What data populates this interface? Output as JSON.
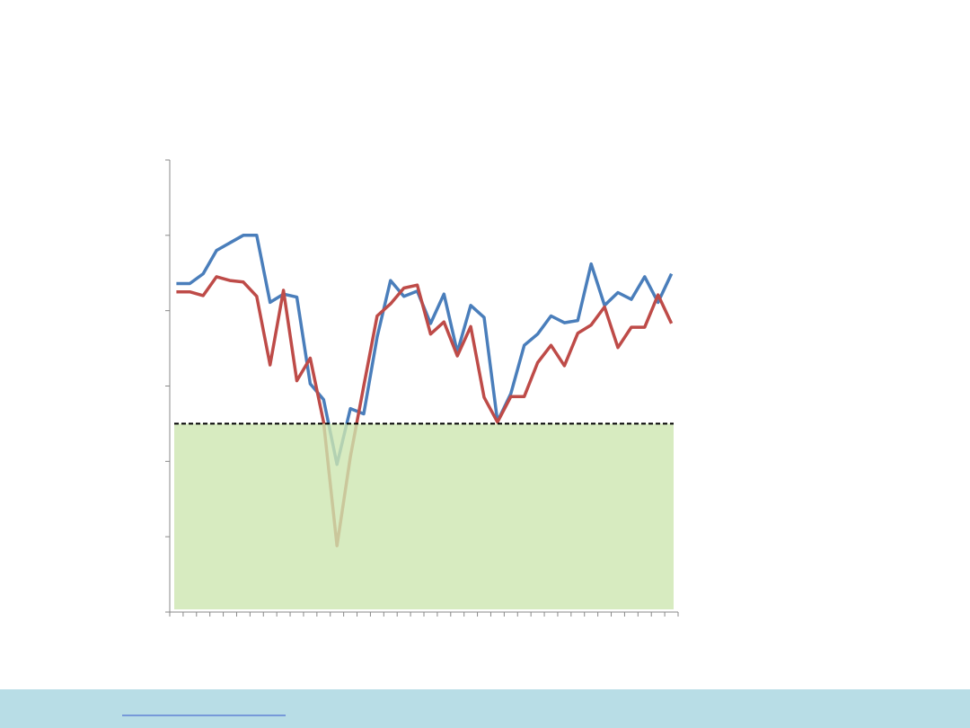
{
  "chart_data": {
    "type": "line",
    "categories": [
      null,
      null,
      null,
      null,
      null,
      null,
      null,
      null,
      null,
      null,
      null,
      null,
      null,
      null,
      null,
      null,
      null,
      null,
      null,
      null,
      null,
      null,
      null,
      null,
      null,
      null,
      null,
      null,
      null,
      null,
      null,
      null,
      null,
      null,
      null,
      null,
      null,
      null
    ],
    "series": [
      {
        "color": "#4a7ebb",
        "values": [
          43.6,
          43.6,
          44.9,
          48.0,
          49.0,
          50.0,
          50.0,
          41.1,
          42.2,
          41.8,
          30.3,
          28.2,
          19.6,
          27.0,
          26.3,
          36.5,
          44.0,
          41.9,
          42.6,
          38.3,
          42.2,
          34.5,
          40.7,
          39.1,
          25.3,
          29.0,
          35.4,
          36.9,
          39.3,
          38.4,
          38.7,
          46.2,
          40.7,
          42.4,
          41.5,
          44.5,
          41.1,
          44.9
        ]
      },
      {
        "color": "#be4b48",
        "values": [
          42.5,
          42.5,
          42.0,
          44.5,
          44.0,
          43.8,
          41.9,
          32.8,
          42.7,
          30.7,
          33.7,
          25.2,
          8.8,
          20.6,
          30.0,
          39.3,
          40.9,
          43.0,
          43.4,
          36.9,
          38.5,
          34.0,
          37.9,
          28.5,
          25.2,
          28.6,
          28.6,
          33.1,
          35.4,
          32.7,
          37.0,
          38.1,
          40.5,
          35.1,
          37.8,
          37.8,
          42.1,
          38.3
        ]
      }
    ],
    "ylim": [
      0,
      60
    ],
    "yticks": [
      0,
      10,
      20,
      30,
      40,
      50,
      60
    ],
    "reference_line": 25,
    "shaded_below_reference": "#cde6b0"
  }
}
